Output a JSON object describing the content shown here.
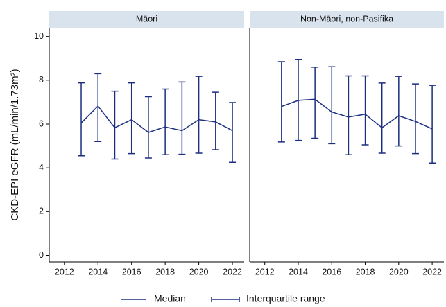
{
  "chart_data": [
    {
      "type": "line",
      "title": "Māori",
      "y_label": "CKD-EPI eGFR (mL/min/1.73m²)",
      "color": "#1c2e80",
      "x": [
        2013,
        2014,
        2015,
        2016,
        2017,
        2018,
        2019,
        2020,
        2021,
        2022
      ],
      "series": [
        {
          "values": [
            6.05,
            6.82,
            5.83,
            6.2,
            5.62,
            5.87,
            5.7,
            6.2,
            6.1,
            5.7
          ],
          "lower": [
            4.55,
            5.2,
            4.4,
            4.65,
            4.45,
            4.6,
            4.62,
            4.67,
            4.83,
            4.25
          ],
          "upper": [
            7.88,
            8.3,
            7.5,
            7.88,
            7.25,
            7.6,
            7.92,
            8.18,
            7.45,
            6.98
          ]
        }
      ],
      "xlim": [
        2011.1,
        2022.7
      ],
      "xticks": [
        2012,
        2014,
        2016,
        2018,
        2020,
        2022
      ],
      "ylim": [
        -0.3,
        10.4
      ],
      "yticks": [
        0,
        2,
        4,
        6,
        8,
        10
      ]
    },
    {
      "type": "line",
      "title": "Non-Māori, non-Pasifika",
      "color": "#1c2e80",
      "x": [
        2013,
        2014,
        2015,
        2016,
        2017,
        2018,
        2019,
        2020,
        2021,
        2022
      ],
      "series": [
        {
          "values": [
            6.8,
            7.08,
            7.13,
            6.55,
            6.32,
            6.45,
            5.83,
            6.38,
            6.12,
            5.78
          ],
          "lower": [
            5.18,
            5.25,
            5.35,
            5.1,
            4.6,
            5.05,
            4.67,
            5.0,
            4.65,
            4.22
          ],
          "upper": [
            8.85,
            8.95,
            8.6,
            8.62,
            8.2,
            8.2,
            7.87,
            8.18,
            7.83,
            7.77
          ]
        }
      ],
      "xlim": [
        2011.1,
        2022.7
      ],
      "xticks": [
        2012,
        2014,
        2016,
        2018,
        2020,
        2022
      ],
      "ylim": [
        -0.3,
        10.4
      ]
    }
  ],
  "legend": [
    {
      "name": "Median"
    },
    {
      "name": "Interquartile range"
    }
  ]
}
